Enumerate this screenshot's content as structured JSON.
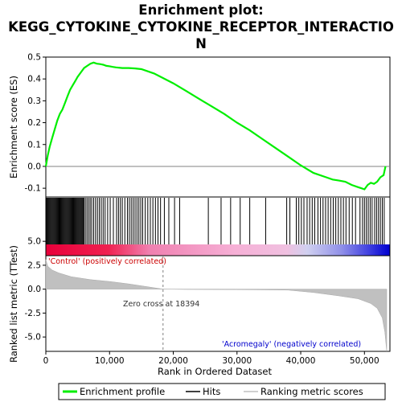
{
  "chart_data": {
    "type": "line",
    "title_lines": [
      "Enrichment plot:",
      "KEGG_CYTOKINE_CYTOKINE_RECEPTOR_INTERACTIO",
      "N"
    ],
    "xlabel": "Rank in Ordered Dataset",
    "ylabel_top": "Enrichment score (ES)",
    "ylabel_bottom": "Ranked list metric (TTest)",
    "xlim": [
      0,
      54000
    ],
    "x_ticks": [
      0,
      10000,
      20000,
      30000,
      40000,
      50000
    ],
    "x_tick_labels": [
      "0",
      "10,000",
      "20,000",
      "30,000",
      "40,000",
      "50,000"
    ],
    "es_ylim": [
      -0.14,
      0.5
    ],
    "es_ticks": [
      -0.1,
      0.0,
      0.1,
      0.2,
      0.3,
      0.4,
      0.5
    ],
    "es_tick_labels": [
      "-0.1",
      "0.0",
      "0.1",
      "0.2",
      "0.3",
      "0.4",
      "0.5"
    ],
    "metric_ylim": [
      -6.5,
      3.5
    ],
    "metric_ticks": [
      -5.0,
      -2.5,
      0.0,
      2.5,
      5.0
    ],
    "metric_tick_labels": [
      "-5.0",
      "-2.5",
      "0.0",
      "2.5",
      "5.0"
    ],
    "series": [
      {
        "name": "Enrichment profile",
        "color": "#00ee00",
        "x": [
          0,
          300,
          600,
          1000,
          1400,
          1800,
          2200,
          2600,
          3000,
          3400,
          3800,
          4200,
          4600,
          5000,
          5500,
          6000,
          6500,
          7000,
          7500,
          8000,
          8500,
          9000,
          9500,
          10000,
          10500,
          11000,
          12000,
          13000,
          14000,
          15000,
          16000,
          17000,
          18000,
          20000,
          22000,
          24000,
          26000,
          28000,
          30000,
          32000,
          34000,
          36000,
          38000,
          40000,
          42000,
          44000,
          45000,
          46000,
          47000,
          48000,
          49000,
          49500,
          50000,
          50500,
          51000,
          51500,
          52000,
          52500,
          53000,
          53300
        ],
        "values": [
          0.0,
          0.05,
          0.09,
          0.13,
          0.17,
          0.21,
          0.24,
          0.26,
          0.29,
          0.32,
          0.35,
          0.37,
          0.39,
          0.41,
          0.43,
          0.45,
          0.46,
          0.47,
          0.475,
          0.47,
          0.468,
          0.465,
          0.46,
          0.458,
          0.455,
          0.453,
          0.45,
          0.45,
          0.448,
          0.445,
          0.435,
          0.425,
          0.41,
          0.38,
          0.345,
          0.31,
          0.275,
          0.24,
          0.2,
          0.165,
          0.125,
          0.085,
          0.045,
          0.005,
          -0.03,
          -0.05,
          -0.06,
          -0.065,
          -0.07,
          -0.085,
          -0.095,
          -0.1,
          -0.105,
          -0.085,
          -0.075,
          -0.08,
          -0.07,
          -0.05,
          -0.04,
          0.0
        ]
      },
      {
        "name": "Hits",
        "color": "#000000",
        "hit_ranks": [
          130,
          260,
          390,
          520,
          650,
          780,
          910,
          1040,
          1170,
          1300,
          1430,
          1560,
          1690,
          1820,
          1950,
          2080,
          2210,
          2340,
          2470,
          2600,
          2730,
          2860,
          2990,
          3120,
          3250,
          3380,
          3510,
          3640,
          3770,
          3900,
          4030,
          4160,
          4290,
          4420,
          4550,
          4680,
          4810,
          4940,
          5070,
          5200,
          5330,
          5460,
          5590,
          5720,
          5850,
          5980,
          6200,
          6450,
          6700,
          6950,
          7200,
          7500,
          7800,
          8100,
          8400,
          8700,
          9000,
          9300,
          9700,
          10100,
          10600,
          11100,
          11400,
          11700,
          12000,
          12400,
          12800,
          13100,
          13400,
          13700,
          14000,
          14300,
          14600,
          14900,
          15200,
          15600,
          16000,
          16400,
          16800,
          17200,
          17600,
          18000,
          18600,
          19300,
          20200,
          21000,
          25500,
          27500,
          29000,
          30500,
          32000,
          34500,
          37800,
          38300,
          39300,
          39700,
          40100,
          40500,
          41000,
          41400,
          41800,
          42200,
          42700,
          43100,
          43500,
          43900,
          44300,
          44700,
          45100,
          45500,
          45900,
          46300,
          46700,
          47100,
          47600,
          48100,
          48600,
          49300,
          49700,
          50000,
          50300,
          50600,
          50900,
          51200,
          51600,
          51900,
          52200,
          52500,
          52800,
          53100
        ]
      },
      {
        "name": "Ranking metric scores",
        "color": "#c0c0c0",
        "x": [
          0,
          300,
          1000,
          2000,
          4000,
          7000,
          10000,
          13000,
          15000,
          17000,
          18394,
          22000,
          30000,
          38000,
          42000,
          46000,
          49000,
          51000,
          52000,
          52800,
          53200,
          53500
        ],
        "values": [
          3.1,
          2.4,
          2.0,
          1.7,
          1.3,
          1.0,
          0.8,
          0.55,
          0.35,
          0.15,
          0.0,
          -0.03,
          -0.05,
          -0.1,
          -0.35,
          -0.7,
          -1.0,
          -1.5,
          -2.0,
          -3.0,
          -4.5,
          -6.5
        ]
      }
    ],
    "zero_cross_rank": 18394,
    "annotations": {
      "positive_label": "'Control' (positively correlated)",
      "negative_label": "'Acromegaly' (negatively correlated)",
      "zero_cross_label": "Zero cross at 18394"
    },
    "legend": {
      "placement": "bottom",
      "entries": [
        "Enrichment profile",
        "Hits",
        "Ranking metric scores"
      ]
    },
    "colors": {
      "es_line": "#00ee00",
      "hits": "#000000",
      "metric_fill": "#c0c0c0",
      "positive_bar": "#e8003a",
      "mid_bar": "#f0a0c8",
      "negative_bar": "#0000e0",
      "positive_text": "#cc0000",
      "negative_text": "#0000cc",
      "zero_line": "#808080"
    }
  }
}
